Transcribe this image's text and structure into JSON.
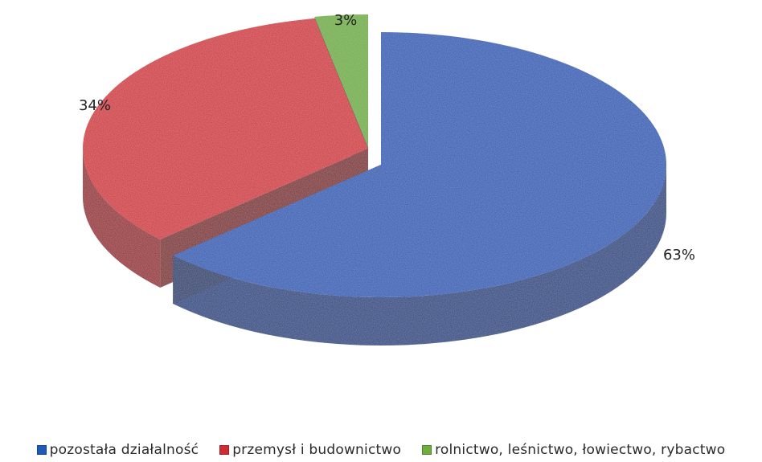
{
  "chart_data": {
    "type": "pie",
    "style": "3d-exploded",
    "slices": [
      {
        "label": "pozostała działalność",
        "value": 63,
        "data_label": "63%",
        "color": "#1F5AB5"
      },
      {
        "label": "przemysł i budownictwo",
        "value": 34,
        "data_label": "34%",
        "color": "#D02B35"
      },
      {
        "label": "rolnictwo, leśnictwo, łowiectwo, rybactwo",
        "value": 3,
        "data_label": "3%",
        "color": "#6FAE3A"
      }
    ],
    "legend_position": "bottom"
  }
}
